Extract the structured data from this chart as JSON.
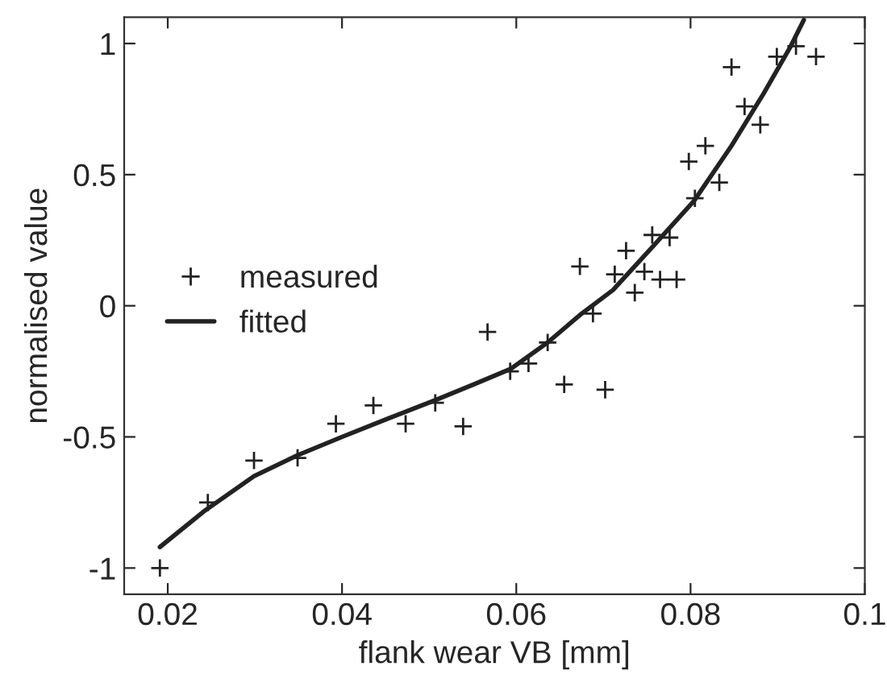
{
  "chart_data": {
    "type": "scatter",
    "xlabel": "flank wear VB [mm]",
    "ylabel": "normalised value",
    "xlim": [
      0.015,
      0.1
    ],
    "ylim": [
      -1.1,
      1.1
    ],
    "xticks": [
      0.02,
      0.04,
      0.06,
      0.08,
      0.1
    ],
    "yticks": [
      -1,
      -0.5,
      0,
      0.5,
      1
    ],
    "grid": false,
    "legend": "left",
    "series": [
      {
        "name": "measured",
        "marker": "cross",
        "color": "#222222",
        "x": [
          0.0191,
          0.0246,
          0.0299,
          0.0349,
          0.0393,
          0.0436,
          0.0473,
          0.0507,
          0.0539,
          0.0567,
          0.0593,
          0.0614,
          0.0636,
          0.0655,
          0.0702,
          0.0688,
          0.0736,
          0.0673,
          0.0713,
          0.0726,
          0.0747,
          0.0756,
          0.0765,
          0.0776,
          0.0784,
          0.0798,
          0.0817,
          0.0805,
          0.0833,
          0.0847,
          0.0862,
          0.088,
          0.0899,
          0.0921,
          0.0944
        ],
        "values": [
          -1.0,
          -0.75,
          -0.59,
          -0.58,
          -0.45,
          -0.38,
          -0.45,
          -0.37,
          -0.46,
          -0.1,
          -0.25,
          -0.22,
          -0.14,
          -0.3,
          -0.32,
          -0.03,
          0.05,
          0.15,
          0.12,
          0.21,
          0.13,
          0.27,
          0.1,
          0.26,
          0.1,
          0.55,
          0.61,
          0.41,
          0.47,
          0.91,
          0.76,
          0.69,
          0.95,
          0.99,
          0.95
        ]
      },
      {
        "name": "fitted",
        "type": "line",
        "marker": "none",
        "line_style": "solid",
        "color": "#222222",
        "x": [
          0.0191,
          0.0243,
          0.0299,
          0.0349,
          0.04,
          0.0453,
          0.0507,
          0.0551,
          0.0594,
          0.0636,
          0.0675,
          0.0711,
          0.0755,
          0.0804,
          0.0847,
          0.0884,
          0.0915,
          0.093
        ],
        "values": [
          -0.92,
          -0.78,
          -0.65,
          -0.57,
          -0.5,
          -0.43,
          -0.36,
          -0.3,
          -0.24,
          -0.14,
          -0.03,
          0.06,
          0.22,
          0.4,
          0.61,
          0.81,
          0.99,
          1.09
        ]
      }
    ]
  }
}
